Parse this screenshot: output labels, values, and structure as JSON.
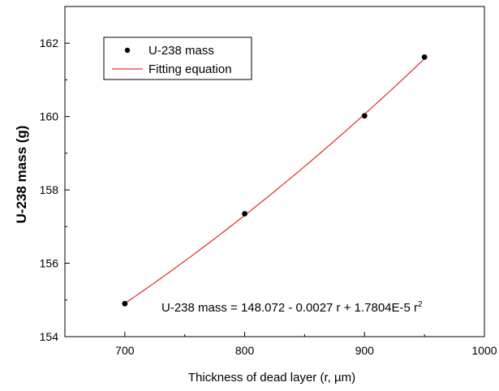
{
  "colors": {
    "fit_line": "#e00000",
    "points": "#000000",
    "axis": "#000000",
    "background": "#ffffff"
  },
  "chart_data": {
    "type": "scatter",
    "xlabel": "Thickness of dead layer (r, µm)",
    "ylabel": "U-238 mass (g)",
    "xlim": [
      650,
      1000
    ],
    "ylim": [
      154,
      163
    ],
    "x_ticks": [
      700,
      800,
      900,
      1000
    ],
    "y_ticks": [
      154,
      156,
      158,
      160,
      162
    ],
    "x_tick_labels": [
      "700",
      "800",
      "900",
      "1000"
    ],
    "y_tick_labels": [
      "154",
      "156",
      "158",
      "160",
      "162"
    ],
    "grid": false,
    "legend_position": "top-left",
    "series": [
      {
        "name": "U-238 mass",
        "kind": "points",
        "x": [
          700,
          800,
          900,
          950
        ],
        "y": [
          154.9,
          157.35,
          160.02,
          161.62
        ]
      },
      {
        "name": "Fitting equation",
        "kind": "line",
        "equation": {
          "a": 148.072,
          "b": -0.0027,
          "c": 1.7804e-05
        },
        "x_range": [
          700,
          950
        ]
      }
    ],
    "annotation": {
      "text": "U-238 mass = 148.072 - 0.0027 r + 1.7804E-5 r",
      "superscript": "2"
    }
  }
}
